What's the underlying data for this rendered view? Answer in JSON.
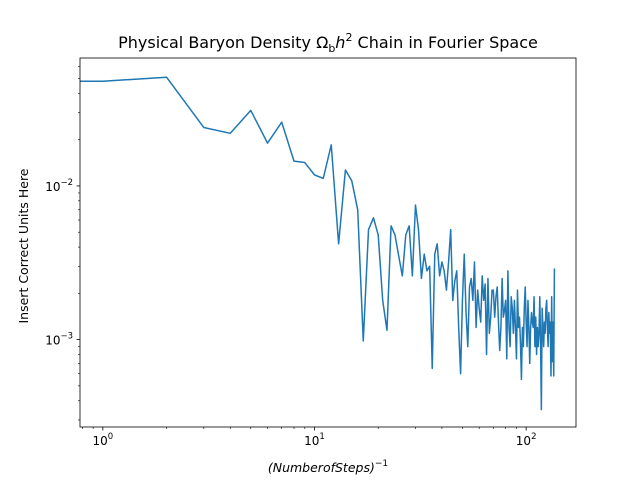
{
  "chart_data": {
    "type": "line",
    "title_prefix": "Physical Baryon Density ",
    "title_symbol": "Ω",
    "title_symbol_sub": "b",
    "title_var": "h",
    "title_var_sup": "2",
    "title_suffix": " Chain in Fourier Space",
    "xlabel": "(NumberofSteps)",
    "xlabel_sup": "−1",
    "ylabel": "Insert Correct Units Here",
    "xscale": "log",
    "yscale": "log",
    "xlim": [
      0.78,
      172
    ],
    "ylim": [
      0.00027,
      0.068
    ],
    "grid": false,
    "line_color": "#1f77b4",
    "x_ticks": [
      {
        "value": 1,
        "base": "10",
        "exp": "0"
      },
      {
        "value": 10,
        "base": "10",
        "exp": "1"
      },
      {
        "value": 100,
        "base": "10",
        "exp": "2"
      }
    ],
    "y_ticks": [
      {
        "value": 0.001,
        "base": "10",
        "exp": "−3"
      },
      {
        "value": 0.01,
        "base": "10",
        "exp": "−2"
      }
    ],
    "series": [
      {
        "x": [
          0.78,
          1,
          2,
          3,
          4,
          5,
          6,
          7,
          8,
          9,
          10,
          11,
          12,
          13,
          14,
          15,
          16,
          17,
          18,
          19,
          20,
          21,
          22,
          23,
          24,
          25,
          26,
          27,
          28,
          29,
          30,
          31,
          32,
          33,
          34,
          35,
          36,
          37,
          38,
          39,
          40,
          41,
          42,
          43,
          44,
          45,
          46,
          47,
          48,
          49,
          50,
          51,
          52,
          53,
          54,
          55,
          56,
          57,
          58,
          59,
          60,
          61,
          62,
          63,
          64,
          65,
          66,
          67,
          68,
          69,
          70,
          71,
          72,
          73,
          74,
          75,
          76,
          77,
          78,
          79,
          80,
          81,
          82,
          83,
          84,
          85,
          86,
          87,
          88,
          89,
          90,
          91,
          92,
          93,
          94,
          95,
          96,
          97,
          98,
          99,
          100,
          101,
          102,
          103,
          104,
          105,
          106,
          107,
          108,
          109,
          110,
          111,
          112,
          113,
          114,
          115,
          116,
          117,
          118,
          119,
          120,
          121,
          122,
          123,
          124,
          125,
          126,
          127,
          128,
          129,
          130,
          131,
          132,
          133,
          134,
          135,
          136
        ],
        "y": [
          0.048,
          0.048,
          0.051,
          0.024,
          0.022,
          0.031,
          0.019,
          0.026,
          0.0145,
          0.0142,
          0.0118,
          0.0112,
          0.0185,
          0.0042,
          0.0127,
          0.0108,
          0.007,
          0.00098,
          0.0052,
          0.0062,
          0.0048,
          0.0018,
          0.00115,
          0.0055,
          0.0048,
          0.0035,
          0.0026,
          0.0048,
          0.0055,
          0.0026,
          0.0075,
          0.0052,
          0.0025,
          0.0036,
          0.0028,
          0.003,
          0.00065,
          0.0036,
          0.0042,
          0.0026,
          0.0032,
          0.0028,
          0.0021,
          0.0032,
          0.0052,
          0.0018,
          0.0024,
          0.0028,
          0.0012,
          0.0006,
          0.0018,
          0.0036,
          0.0015,
          0.0009,
          0.0022,
          0.0025,
          0.0018,
          0.0032,
          0.0012,
          0.0021,
          0.0016,
          0.0013,
          0.0026,
          0.0018,
          0.0023,
          0.0008,
          0.0025,
          0.0011,
          0.0014,
          0.0021,
          0.0021,
          0.0014,
          0.0019,
          0.0022,
          0.0013,
          0.00085,
          0.0012,
          0.0025,
          0.0014,
          0.00155,
          0.0018,
          0.00075,
          0.0028,
          0.0012,
          0.0009,
          0.0019,
          0.0016,
          0.0011,
          0.0018,
          0.0012,
          0.00075,
          0.0021,
          0.0012,
          0.0014,
          0.00095,
          0.00055,
          0.0012,
          0.0009,
          0.0016,
          0.0022,
          0.0013,
          0.0009,
          0.0018,
          0.0012,
          0.0007,
          0.0012,
          0.0015,
          0.0013,
          0.0012,
          0.0019,
          0.0009,
          0.0014,
          0.0008,
          0.0012,
          0.0009,
          0.0011,
          0.0019,
          0.00095,
          0.00035,
          0.0016,
          0.0012,
          0.0009,
          0.0013,
          0.0011,
          0.0016,
          0.0018,
          0.0012,
          0.0009,
          0.0015,
          0.0011,
          0.0013,
          0.00058,
          0.0019,
          0.00072,
          0.0013,
          0.00058,
          0.0029
        ]
      }
    ]
  }
}
